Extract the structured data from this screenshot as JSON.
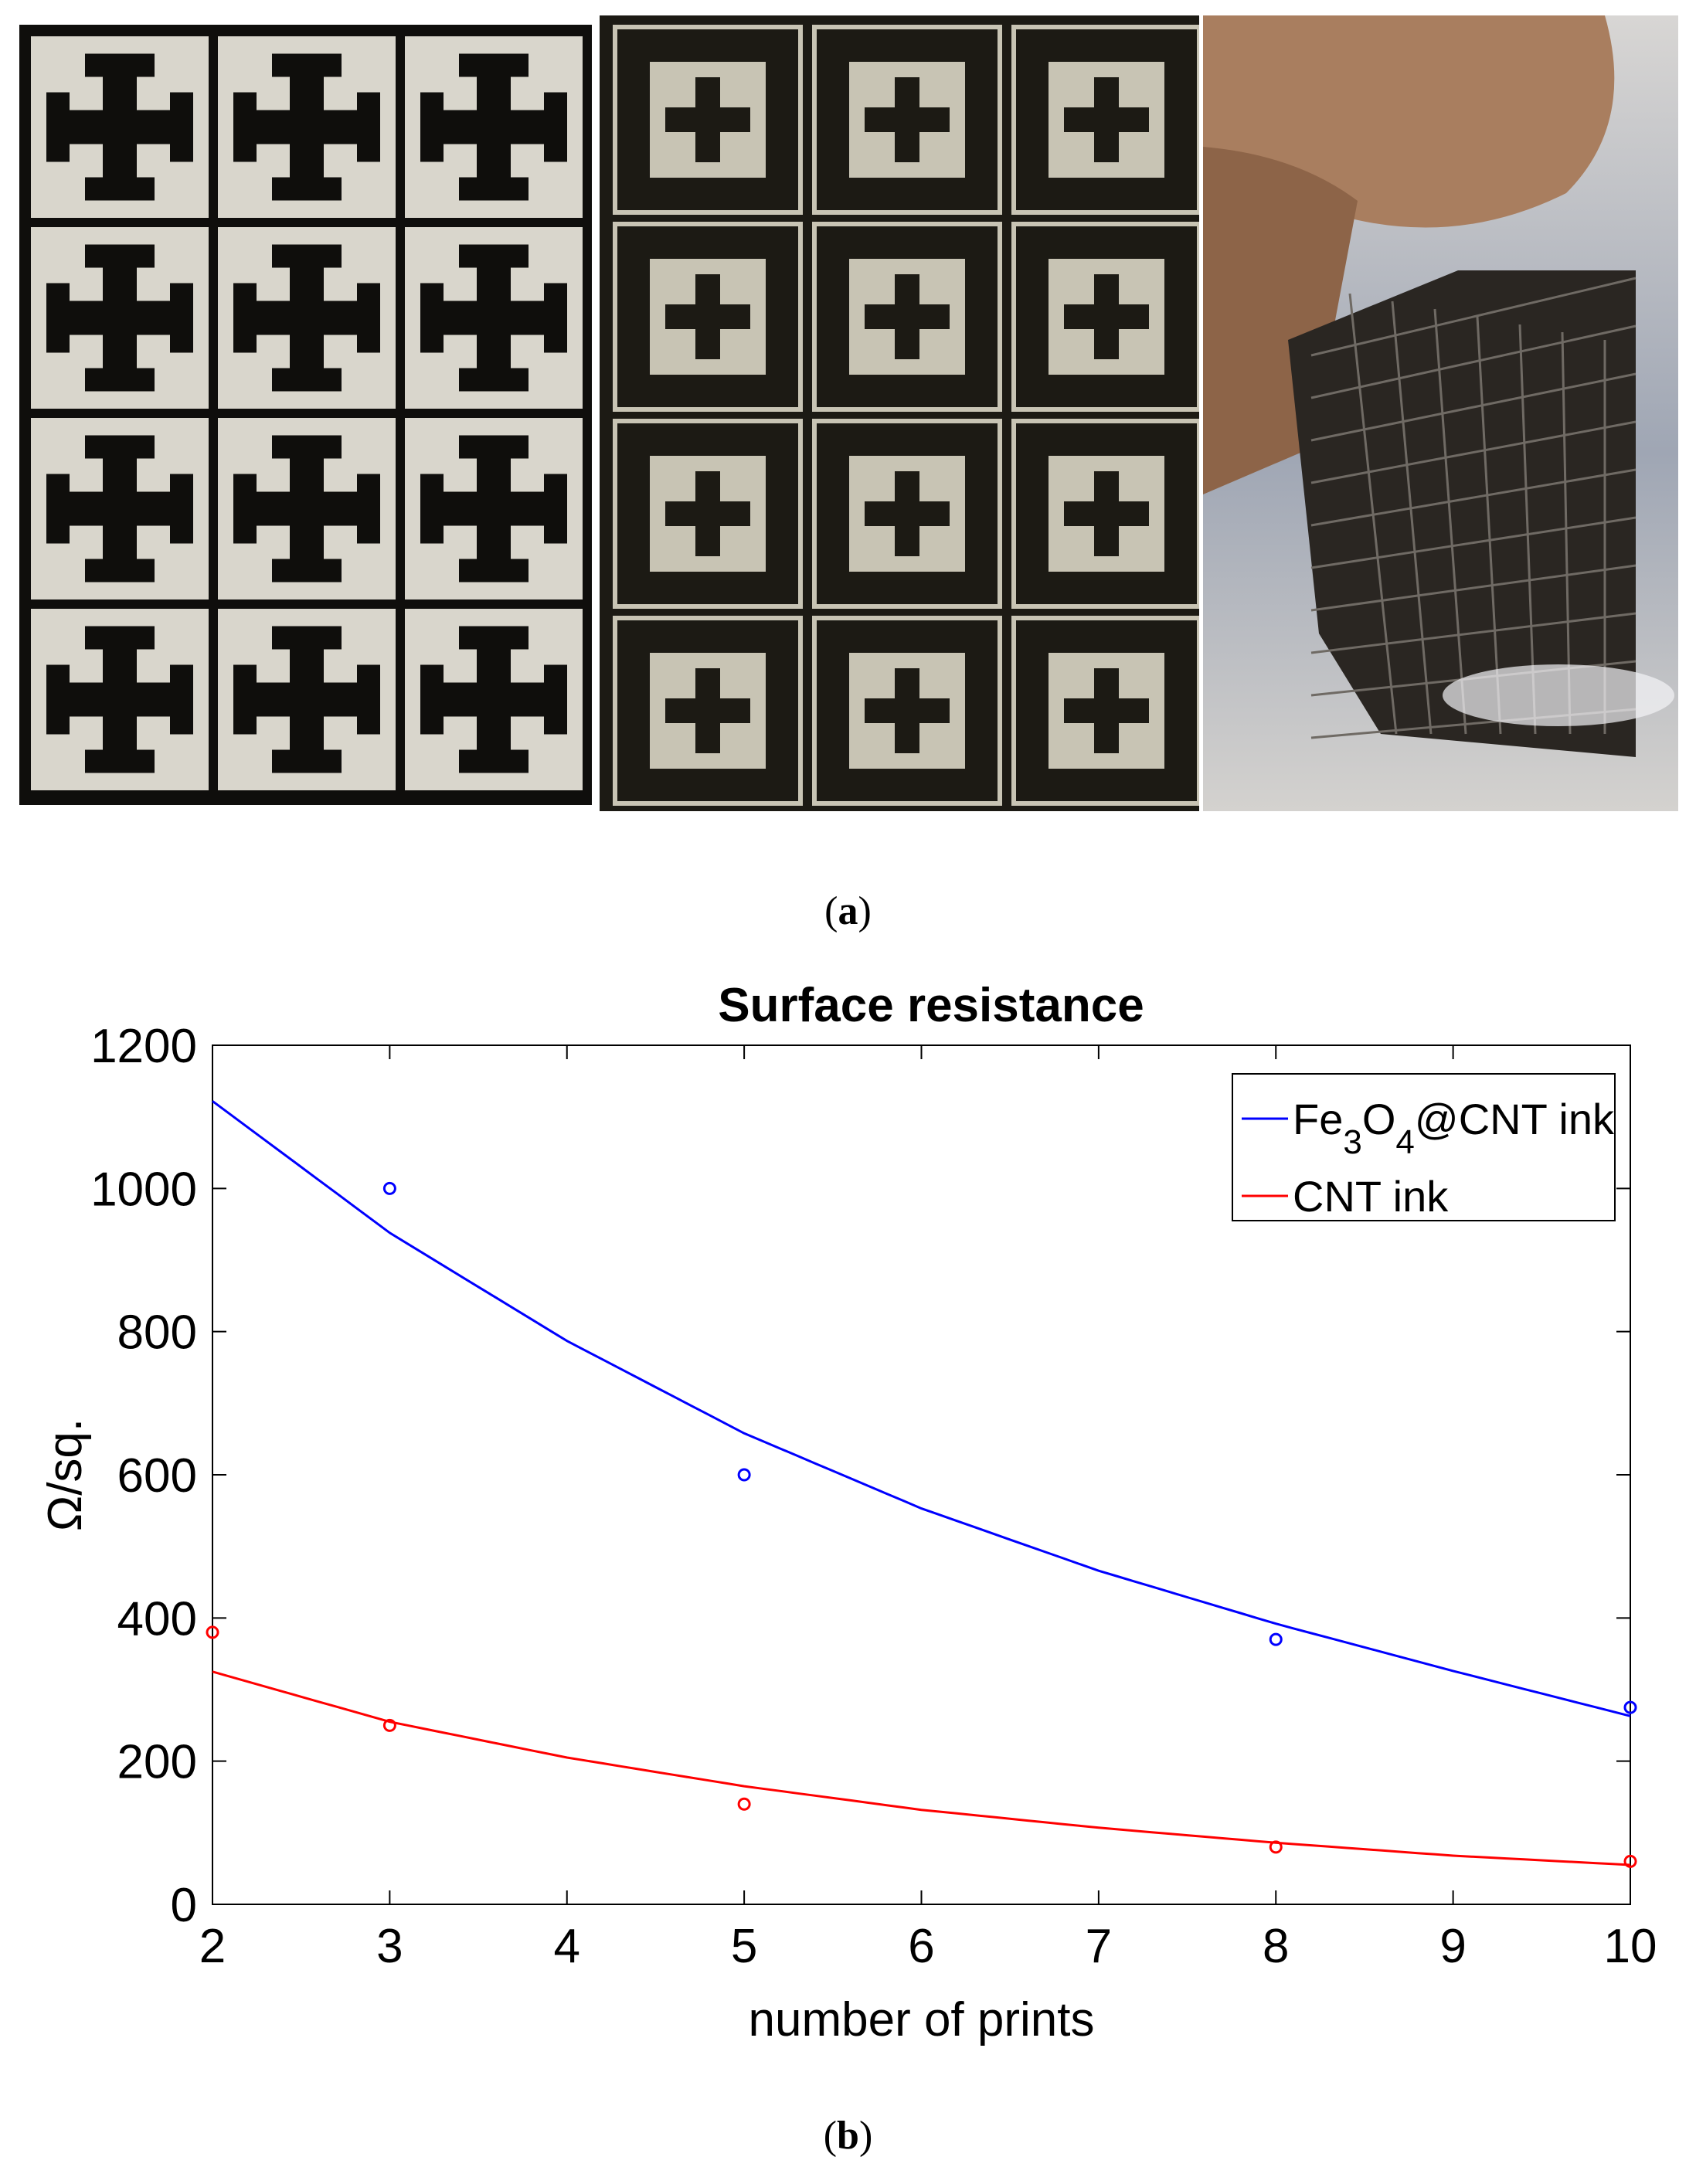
{
  "figure": {
    "panel_a_caption_letter": "a",
    "panel_b_caption_letter": "b",
    "photos": [
      {
        "name": "printed-fss-cross-pattern-photo",
        "colors": {
          "background": "#0f0e0c",
          "cell": "#d9d6cc",
          "shape": "#0f0e0c"
        }
      },
      {
        "name": "printed-fss-square-loop-photo",
        "colors": {
          "background": "#1c1a14",
          "line": "#c8c4b4"
        }
      },
      {
        "name": "flexible-fss-sample-in-hand-photo",
        "colors": {
          "background": "#bdb8b2",
          "skin": "#a97e5f",
          "sample": "#2a2622"
        }
      }
    ]
  },
  "chart_data": {
    "type": "scatter",
    "title": "Surface resistance",
    "xlabel": "number of prints",
    "ylabel": "Ω/sq.",
    "xlim": [
      2,
      10
    ],
    "ylim": [
      0,
      1200
    ],
    "xticks": [
      2,
      3,
      4,
      5,
      6,
      7,
      8,
      9,
      10
    ],
    "yticks": [
      0,
      200,
      400,
      600,
      800,
      1000,
      1200
    ],
    "grid": false,
    "legend_position": "top-right",
    "series": [
      {
        "name": "Fe3O4@CNT ink",
        "color": "#0000ff",
        "marker": "circle",
        "x": [
          3,
          5,
          8,
          10
        ],
        "y": [
          1000,
          600,
          370,
          275
        ],
        "fit": {
          "x": [
            2,
            3,
            4,
            5,
            6,
            7,
            8,
            9,
            10
          ],
          "y": [
            1122,
            938,
            787,
            658,
            553,
            466,
            392,
            326,
            263
          ]
        }
      },
      {
        "name": "CNT ink",
        "color": "#ff0000",
        "marker": "circle",
        "x": [
          2,
          3,
          5,
          8,
          10
        ],
        "y": [
          380,
          250,
          140,
          80,
          60
        ],
        "fit": {
          "x": [
            2,
            3,
            4,
            5,
            6,
            7,
            8,
            9,
            10
          ],
          "y": [
            325,
            255,
            205,
            165,
            132,
            107,
            86,
            68,
            55
          ]
        }
      }
    ]
  }
}
